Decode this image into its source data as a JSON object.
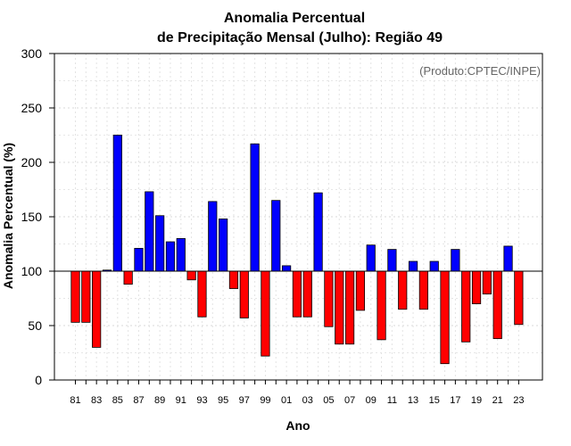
{
  "chart_data": {
    "type": "bar",
    "title_line1": "Anomalia Percentual",
    "title_line2": "de Precipitação Mensal (Julho): Região 49",
    "xlabel": "Ano",
    "ylabel": "Anomalia Percentual (%)",
    "credit": "(Produto:CPTEC/INPE)",
    "baseline": 100,
    "ylim": [
      0,
      300
    ],
    "yticks": [
      0,
      50,
      100,
      150,
      200,
      250,
      300
    ],
    "grid": true,
    "categories": [
      "81",
      "82",
      "83",
      "84",
      "85",
      "86",
      "87",
      "88",
      "89",
      "90",
      "91",
      "92",
      "93",
      "94",
      "95",
      "96",
      "97",
      "98",
      "99",
      "00",
      "01",
      "02",
      "03",
      "04",
      "05",
      "06",
      "07",
      "08",
      "09",
      "10",
      "11",
      "12",
      "13",
      "14",
      "15",
      "16",
      "17",
      "18",
      "19",
      "20",
      "21",
      "22",
      "23"
    ],
    "xtick_labels": [
      "81",
      "83",
      "85",
      "87",
      "89",
      "91",
      "93",
      "95",
      "97",
      "99",
      "01",
      "03",
      "05",
      "07",
      "09",
      "11",
      "13",
      "15",
      "17",
      "19",
      "21",
      "23"
    ],
    "values": [
      53,
      53,
      30,
      101,
      225,
      88,
      121,
      173,
      151,
      127,
      130,
      92,
      58,
      164,
      148,
      84,
      57,
      217,
      22,
      165,
      105,
      58,
      58,
      172,
      49,
      33,
      33,
      64,
      124,
      37,
      120,
      65,
      109,
      65,
      109,
      15,
      120,
      35,
      70,
      79,
      38,
      123,
      51
    ],
    "colors": {
      "above": "#0000ff",
      "below": "#ff0000"
    }
  }
}
